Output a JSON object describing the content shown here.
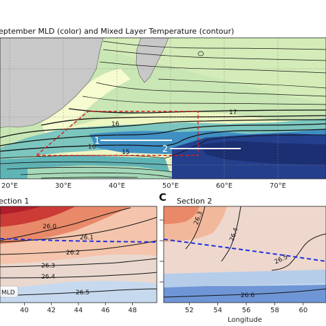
{
  "chart_data": [
    {
      "type": "heatmap",
      "title": "September MLD (color) and Mixed Layer Temperature (contour)",
      "title_visible": "eptember MLD (color) and Mixed Layer Temperature (contour)",
      "x": {
        "ticks": [
          20,
          30,
          40,
          50,
          60,
          70
        ],
        "tick_labels": [
          "20°E",
          "30°E",
          "40°E",
          "50°E",
          "60°E",
          "70°E"
        ]
      },
      "contour_labels": [
        {
          "text": "17",
          "lon": 51,
          "lat": -38.0
        },
        {
          "text": "16",
          "lon": 36,
          "lat": -39.3
        },
        {
          "text": "16",
          "lon": 33,
          "lat": -42.0
        },
        {
          "text": "15",
          "lon": 38,
          "lat": -42.7
        }
      ],
      "sections": [
        {
          "label": "1",
          "lon_start": 36.5,
          "lon_end": 50,
          "lat": -41.0
        },
        {
          "label": "2",
          "lon_start": 46,
          "lon_end": 63.5,
          "lat": -42.3
        }
      ],
      "analysis_box": {
        "lon": [
          25,
          55
        ],
        "lat": [
          -43.0,
          -37.3
        ],
        "style": "red dashed"
      },
      "grid": true
    },
    {
      "type": "heatmap",
      "panel": "",
      "title": "ection 1",
      "x": {
        "ticks": [
          40,
          42,
          44,
          46,
          48
        ],
        "range": [
          38.2,
          49.8
        ]
      },
      "contour_labels": [
        "26.0",
        "26.1",
        "26.2",
        "26.3",
        "26.4",
        "26.5"
      ],
      "legend": {
        "entries": [
          "MLD"
        ],
        "position": "bottom-left",
        "style": "blue dashed"
      }
    },
    {
      "type": "heatmap",
      "panel": "C",
      "title": "Section 2",
      "xlabel": "Longitude",
      "x": {
        "ticks": [
          52,
          54,
          56,
          58,
          60
        ],
        "range": [
          50.2,
          61.6
        ]
      },
      "contour_labels": [
        "26.3",
        "26.4",
        "26.5",
        "26.6"
      ]
    }
  ]
}
